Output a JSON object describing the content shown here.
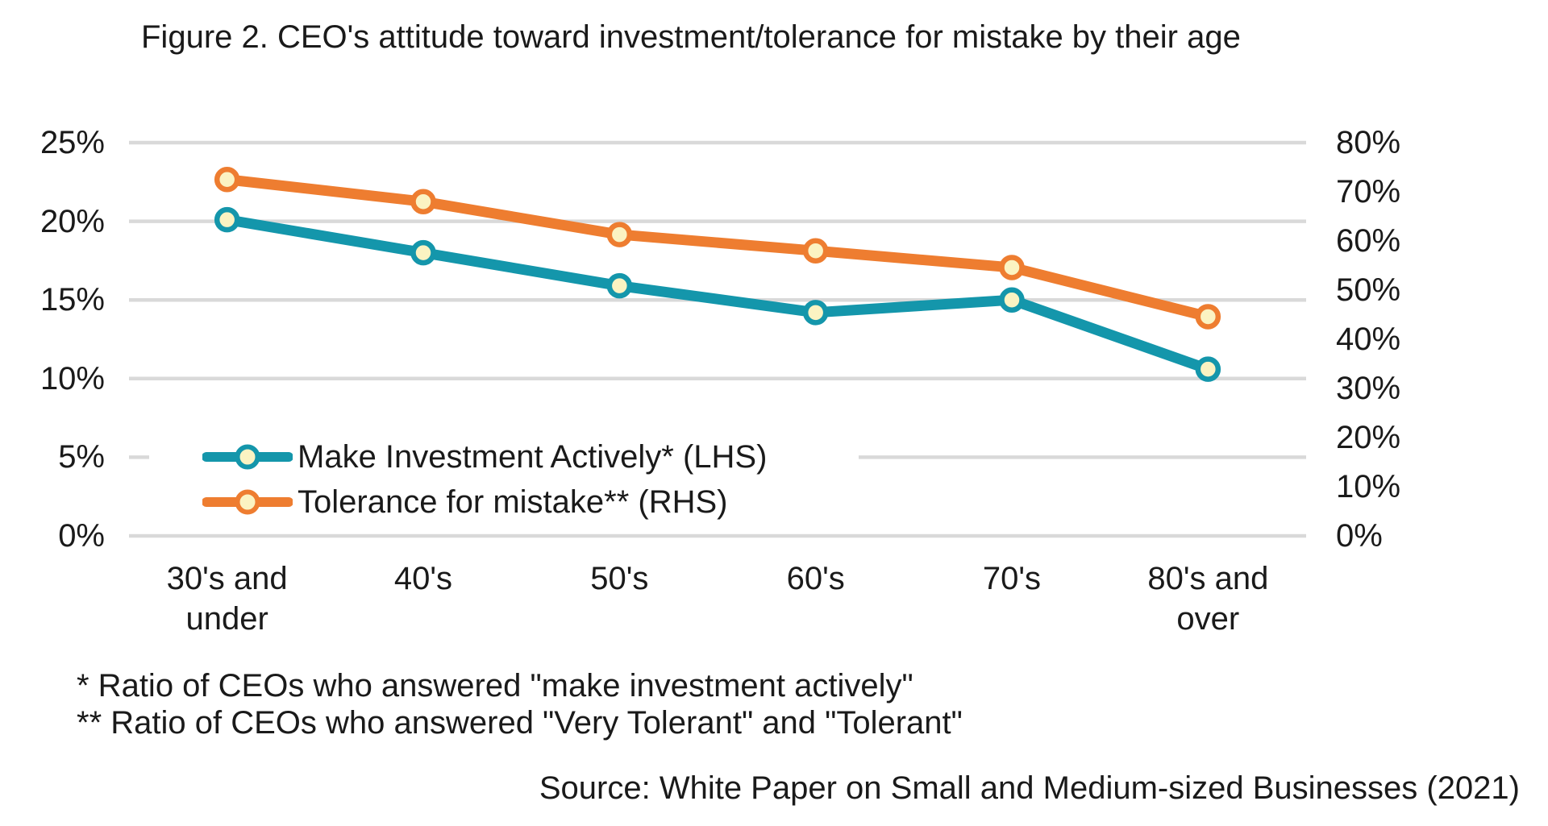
{
  "figure": {
    "title": "Figure 2. CEO's attitude toward investment/tolerance for mistake by their age",
    "footnote_1": "* Ratio of CEOs who answered \"make investment actively\"",
    "footnote_2": "** Ratio of CEOs who answered \"Very Tolerant\" and \"Tolerant\"",
    "source": "Source: White Paper on Small and Medium-sized Businesses (2021)"
  },
  "chart_data": {
    "type": "line",
    "title": "Figure 2. CEO's attitude toward investment/tolerance for mistake by their age",
    "categories": [
      "30's and\nunder",
      "40's",
      "50's",
      "60's",
      "70's",
      "80's and\nover"
    ],
    "series": [
      {
        "id": "investment",
        "name": "Make Investment Actively* (LHS)",
        "axis": "left",
        "color": "#1496AB",
        "values": [
          20.1,
          18.0,
          15.9,
          14.2,
          15.0,
          10.6
        ]
      },
      {
        "id": "tolerance",
        "name": "Tolerance for mistake** (RHS)",
        "axis": "right",
        "color": "#EE7D30",
        "values": [
          72.5,
          68.0,
          61.3,
          58.0,
          54.6,
          44.6
        ]
      }
    ],
    "left_axis": {
      "min": 0,
      "max": 25,
      "tick_values": [
        25,
        20,
        15,
        10,
        5,
        0
      ],
      "tick_suffix": "%"
    },
    "right_axis": {
      "min": 0,
      "max": 80,
      "tick_values": [
        80,
        70,
        60,
        50,
        40,
        30,
        20,
        10,
        0
      ],
      "tick_suffix": "%"
    },
    "marker_fill": "#FBF3C2",
    "gridline_color": "#D9D9D9",
    "grid": "horizontal",
    "legend_position": "inside-bottom-left"
  }
}
